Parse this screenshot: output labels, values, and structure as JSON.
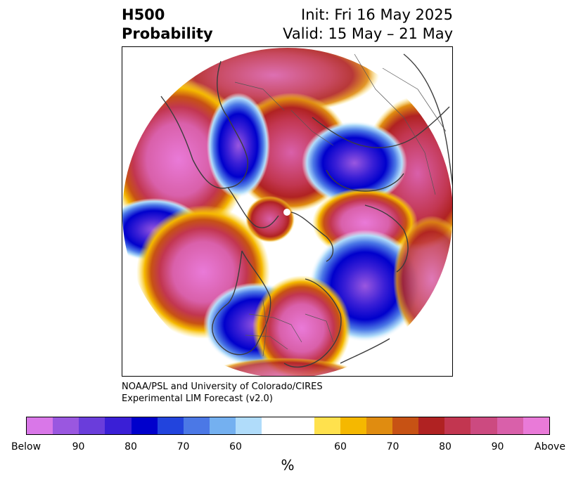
{
  "header": {
    "title_line1": "H500",
    "title_line2": "Probability",
    "init": "Init: Fri 16 May 2025",
    "valid": "Valid: 15 May – 21 May"
  },
  "credit": {
    "line1": "NOAA/PSL and University of Colorado/CIRES",
    "line2": "Experimental LIM Forecast (v2.0)"
  },
  "colorbar": {
    "colors": [
      "#d977e8",
      "#9a57e0",
      "#6a3ddb",
      "#3a1fd6",
      "#0000cc",
      "#2244dd",
      "#4b78e6",
      "#74b0f0",
      "#b0dcfa",
      "#ffffff",
      "#ffffff",
      "#ffe14d",
      "#f5b800",
      "#e08c10",
      "#c75214",
      "#b02222",
      "#c23650",
      "#cc4a80",
      "#d960aa",
      "#e97ad8"
    ],
    "tick_labels": [
      "Below",
      "90",
      "80",
      "70",
      "60",
      "60",
      "70",
      "80",
      "90",
      "Above"
    ],
    "unit": "%"
  },
  "map": {
    "projection": "north-polar-stereographic",
    "variable": "500 hPa height anomaly probability",
    "above_color": "#e07ad8",
    "below_color": "#2a1fd6"
  }
}
